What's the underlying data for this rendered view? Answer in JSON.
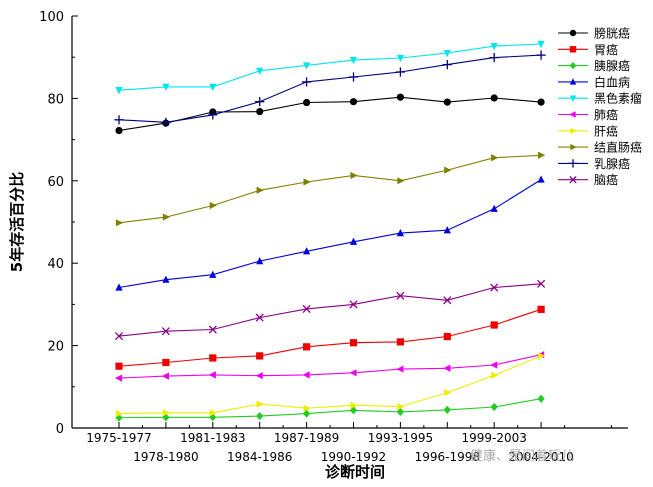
{
  "chart_data": {
    "type": "line",
    "xlabel": "诊断时间",
    "ylabel": "5年存活百分比",
    "ylim": [
      0,
      100
    ],
    "yticks": [
      0,
      20,
      40,
      60,
      80,
      100
    ],
    "grid": false,
    "legend_position": "top-right",
    "categories": [
      "1975-1977",
      "1978-1980",
      "1981-1983",
      "1984-1986",
      "1987-1989",
      "1990-1992",
      "1993-1995",
      "1996-1998",
      "1999-2003",
      "2004-2010"
    ],
    "series": [
      {
        "name": "膀胱癌",
        "color": "#000000",
        "marker": "circle",
        "values": [
          72.2,
          74.0,
          76.7,
          76.8,
          79.0,
          79.2,
          80.3,
          79.1,
          80.1,
          79.1
        ]
      },
      {
        "name": "胃癌",
        "color": "#ee0000",
        "marker": "square",
        "values": [
          15.0,
          15.9,
          17.0,
          17.5,
          19.7,
          20.7,
          20.9,
          22.2,
          25.0,
          28.8
        ]
      },
      {
        "name": "胰腺癌",
        "color": "#22cc22",
        "marker": "diamond",
        "values": [
          2.5,
          2.6,
          2.6,
          2.9,
          3.5,
          4.3,
          3.9,
          4.4,
          5.1,
          7.1
        ]
      },
      {
        "name": "白血病",
        "color": "#0000dd",
        "marker": "triangle-up",
        "values": [
          34.1,
          36.0,
          37.2,
          40.5,
          42.9,
          45.2,
          47.3,
          48.0,
          53.2,
          60.3
        ]
      },
      {
        "name": "黑色素瘤",
        "color": "#00e5ee",
        "marker": "triangle-down",
        "values": [
          82.0,
          82.8,
          82.8,
          86.7,
          88.0,
          89.3,
          89.8,
          91.0,
          92.7,
          93.2
        ]
      },
      {
        "name": "肺癌",
        "color": "#ee00ee",
        "marker": "triangle-left",
        "values": [
          12.1,
          12.6,
          12.9,
          12.7,
          12.9,
          13.4,
          14.3,
          14.5,
          15.3,
          17.8
        ]
      },
      {
        "name": "肝癌",
        "color": "#eeee00",
        "marker": "triangle-right",
        "values": [
          3.5,
          3.7,
          3.7,
          5.8,
          4.8,
          5.5,
          5.2,
          8.6,
          12.8,
          17.5
        ]
      },
      {
        "name": "结直肠癌",
        "color": "#808000",
        "marker": "triangle-right",
        "values": [
          49.8,
          51.2,
          54.0,
          57.7,
          59.7,
          61.3,
          60.0,
          62.6,
          65.6,
          66.2
        ]
      },
      {
        "name": "乳腺癌",
        "color": "#000080",
        "marker": "plus",
        "values": [
          74.8,
          74.2,
          76.0,
          79.2,
          84.0,
          85.2,
          86.4,
          88.2,
          89.9,
          90.5
        ]
      },
      {
        "name": "脑癌",
        "color": "#880088",
        "marker": "cross",
        "values": [
          22.3,
          23.5,
          23.9,
          26.8,
          28.9,
          30.0,
          32.1,
          31.0,
          34.1,
          35.0
        ]
      }
    ]
  },
  "watermark": "健康、是间着玩儿"
}
